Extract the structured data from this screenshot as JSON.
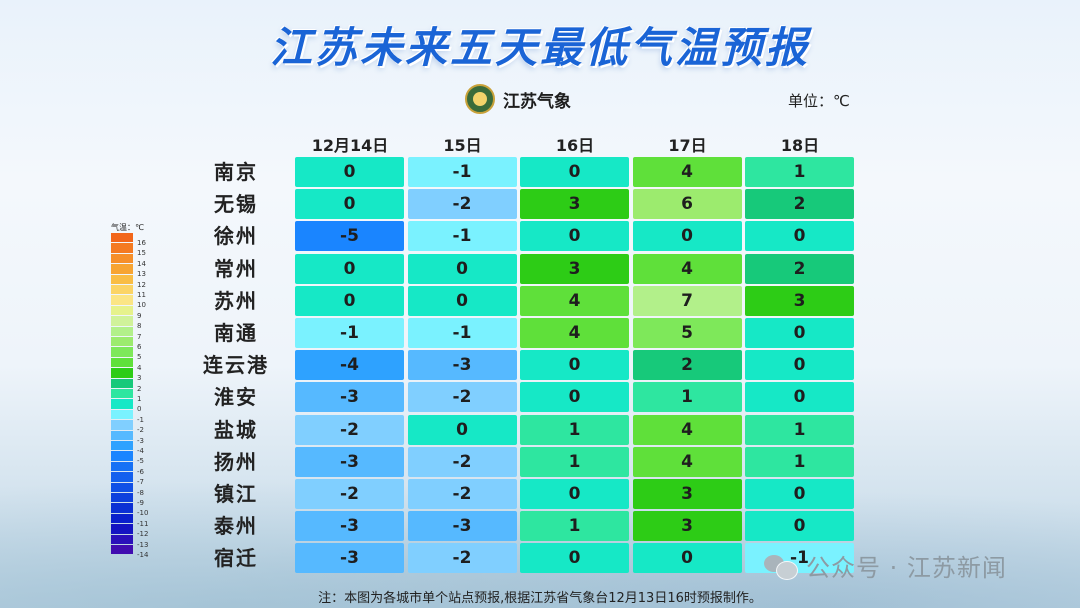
{
  "title": "江苏未来五天最低气温预报",
  "logo": {
    "text": "江苏气象"
  },
  "unit_label": "单位：℃",
  "chart_data": {
    "type": "heatmap",
    "columns": [
      "12月14日",
      "15日",
      "16日",
      "17日",
      "18日"
    ],
    "rows": [
      "南京",
      "无锡",
      "徐州",
      "常州",
      "苏州",
      "南通",
      "连云港",
      "淮安",
      "盐城",
      "扬州",
      "镇江",
      "泰州",
      "宿迁"
    ],
    "values": [
      [
        0,
        -1,
        0,
        4,
        1
      ],
      [
        0,
        -2,
        3,
        6,
        2
      ],
      [
        -5,
        -1,
        0,
        0,
        0
      ],
      [
        0,
        0,
        3,
        4,
        2
      ],
      [
        0,
        0,
        4,
        7,
        3
      ],
      [
        -1,
        -1,
        4,
        5,
        0
      ],
      [
        -4,
        -3,
        0,
        2,
        0
      ],
      [
        -3,
        -2,
        0,
        1,
        0
      ],
      [
        -2,
        0,
        1,
        4,
        1
      ],
      [
        -3,
        -2,
        1,
        4,
        1
      ],
      [
        -2,
        -2,
        0,
        3,
        0
      ],
      [
        -3,
        -3,
        1,
        3,
        0
      ],
      [
        -3,
        -2,
        0,
        0,
        -1
      ]
    ],
    "color_scale": [
      {
        "v": 16,
        "color": "#f2661a"
      },
      {
        "v": 15,
        "color": "#f47a22"
      },
      {
        "v": 14,
        "color": "#f68f2a"
      },
      {
        "v": 13,
        "color": "#f7a432"
      },
      {
        "v": 12,
        "color": "#f9bd45"
      },
      {
        "v": 11,
        "color": "#fbd466"
      },
      {
        "v": 10,
        "color": "#fbe585"
      },
      {
        "v": 9,
        "color": "#e6f28c"
      },
      {
        "v": 8,
        "color": "#d0f29a"
      },
      {
        "v": 7,
        "color": "#b2f08a"
      },
      {
        "v": 6,
        "color": "#9ceb6e"
      },
      {
        "v": 5,
        "color": "#7ee85a"
      },
      {
        "v": 4,
        "color": "#5fe03a"
      },
      {
        "v": 3,
        "color": "#2dcc16"
      },
      {
        "v": 2,
        "color": "#17c97a"
      },
      {
        "v": 1,
        "color": "#2ee6a0"
      },
      {
        "v": 0,
        "color": "#16e8c6"
      },
      {
        "v": -1,
        "color": "#7af2ff"
      },
      {
        "v": -2,
        "color": "#80cfff"
      },
      {
        "v": -3,
        "color": "#56b9ff"
      },
      {
        "v": -4,
        "color": "#2ea2ff"
      },
      {
        "v": -5,
        "color": "#1a85ff"
      },
      {
        "v": -6,
        "color": "#1671f5"
      },
      {
        "v": -7,
        "color": "#1360ee"
      },
      {
        "v": -8,
        "color": "#1050e6"
      },
      {
        "v": -9,
        "color": "#0d40dd"
      },
      {
        "v": -10,
        "color": "#0b30d4"
      },
      {
        "v": -11,
        "color": "#0a20cc"
      },
      {
        "v": -12,
        "color": "#1414c2"
      },
      {
        "v": -13,
        "color": "#2a10ba"
      },
      {
        "v": -14,
        "color": "#400cb0"
      }
    ],
    "legend_title": "气温：℃",
    "legend_labels": [
      "16",
      "15",
      "14",
      "13",
      "12",
      "11",
      "10",
      "9",
      "8",
      "7",
      "6",
      "5",
      "4",
      "3",
      "2",
      "1",
      "0",
      "-1",
      "-2",
      "-3",
      "-4",
      "-5",
      "-6",
      "-7",
      "-8",
      "-9",
      "-10",
      "-11",
      "-12",
      "-13",
      "-14"
    ],
    "legend_position": "left"
  },
  "note": "注：本图为各城市单个站点预报,根据江苏省气象台12月13日16时预报制作。",
  "watermark": {
    "text": "公众号 · 江苏新闻",
    "icon": "wechat-icon"
  }
}
